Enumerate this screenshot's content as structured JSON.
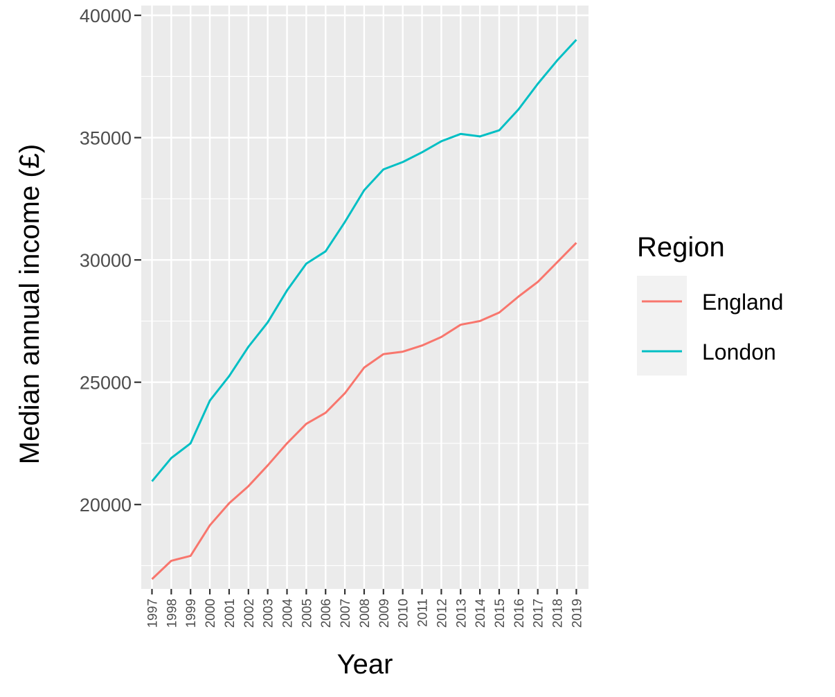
{
  "chart_data": {
    "type": "line",
    "xlabel": "Year",
    "ylabel": "Median annual income (£)",
    "x": [
      "1997",
      "1998",
      "1999",
      "2000",
      "2001",
      "2002",
      "2003",
      "2004",
      "2005",
      "2006",
      "2007",
      "2008",
      "2009",
      "2010",
      "2011",
      "2012",
      "2013",
      "2014",
      "2015",
      "2016",
      "2017",
      "2018",
      "2019"
    ],
    "series": [
      {
        "name": "England",
        "color": "#F8766D",
        "values": [
          16950,
          17700,
          17900,
          19150,
          20050,
          20750,
          21600,
          22500,
          23300,
          23750,
          24550,
          25600,
          26150,
          26250,
          26500,
          26850,
          27350,
          27500,
          27850,
          28500,
          29100,
          29900,
          30700
        ]
      },
      {
        "name": "London",
        "color": "#00BFC4",
        "values": [
          20950,
          21900,
          22500,
          24250,
          25250,
          26450,
          27450,
          28750,
          29850,
          30350,
          31550,
          32850,
          33700,
          34000,
          34400,
          34850,
          35150,
          35050,
          35300,
          36150,
          37200,
          38150,
          39000
        ]
      }
    ],
    "yticks": [
      "20000",
      "25000",
      "30000",
      "35000",
      "40000"
    ],
    "ylim": [
      16550,
      40400
    ],
    "grid": true,
    "legend": {
      "title": "Region",
      "position": "right",
      "entries": [
        "England",
        "London"
      ]
    }
  }
}
